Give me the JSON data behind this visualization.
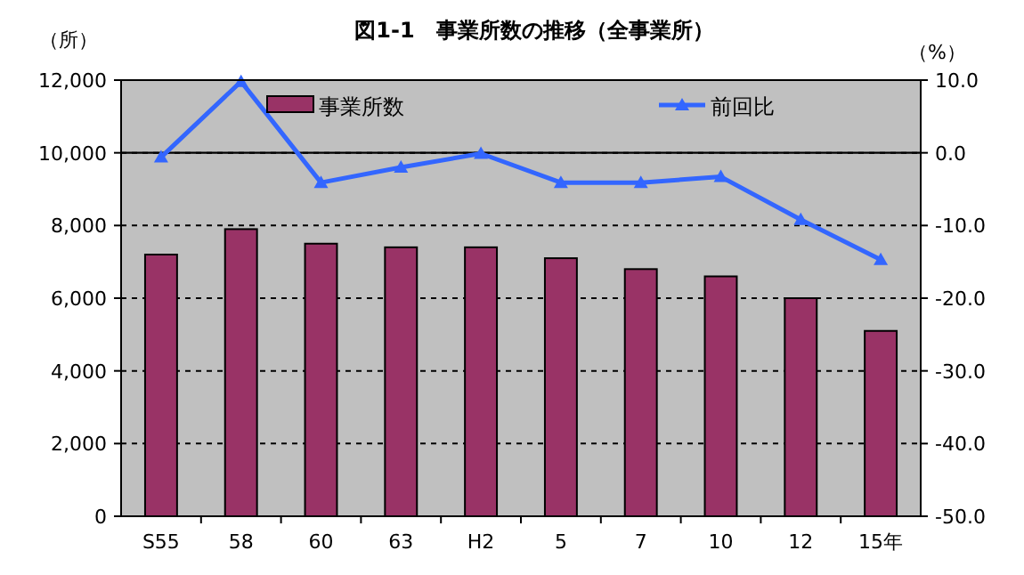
{
  "chart_data": {
    "type": "bar",
    "title": "図1-1　事業所数の推移（全事業所）",
    "ylabel": "（所）",
    "y2label": "（%）",
    "categories": [
      "S55",
      "58",
      "60",
      "63",
      "H2",
      "5",
      "7",
      "10",
      "12",
      "15年"
    ],
    "series": [
      {
        "name": "事業所数",
        "color": "#993366",
        "values": [
          7200,
          7900,
          7500,
          7400,
          7400,
          7100,
          6800,
          6600,
          6000,
          5100
        ]
      },
      {
        "name": "前回比",
        "type": "line",
        "axis": "y2",
        "color": "#3366ff",
        "marker": "triangle",
        "values": [
          -0.6,
          9.8,
          -4.1,
          -2.0,
          -0.1,
          -4.1,
          -4.1,
          -3.3,
          -9.2,
          -14.7
        ]
      }
    ],
    "ylim": [
      0,
      12000
    ],
    "yticks": [
      0,
      {
        "value": 2000,
        "label": "2,000"
      },
      {
        "value": 4000,
        "label": "4,000"
      },
      {
        "value": 6000,
        "label": "6,000"
      },
      {
        "value": 8000,
        "label": "8,000"
      },
      {
        "value": 10000,
        "label": "10,000"
      },
      {
        "value": 12000,
        "label": "12,000"
      }
    ],
    "y2lim": [
      -50,
      10
    ],
    "y2ticks": [
      {
        "value": 10,
        "label": "10.0"
      },
      {
        "value": 0,
        "label": "0.0"
      },
      {
        "value": -10,
        "label": "-10.0"
      },
      {
        "value": -20,
        "label": "-20.0"
      },
      {
        "value": -30,
        "label": "-30.0"
      },
      {
        "value": -40,
        "label": "-40.0"
      },
      {
        "value": -50,
        "label": "-50.0"
      }
    ],
    "ref_lines": [
      {
        "axis": "y2",
        "value": 0,
        "color": "#000000"
      }
    ],
    "grid": "y",
    "legend": "top"
  }
}
